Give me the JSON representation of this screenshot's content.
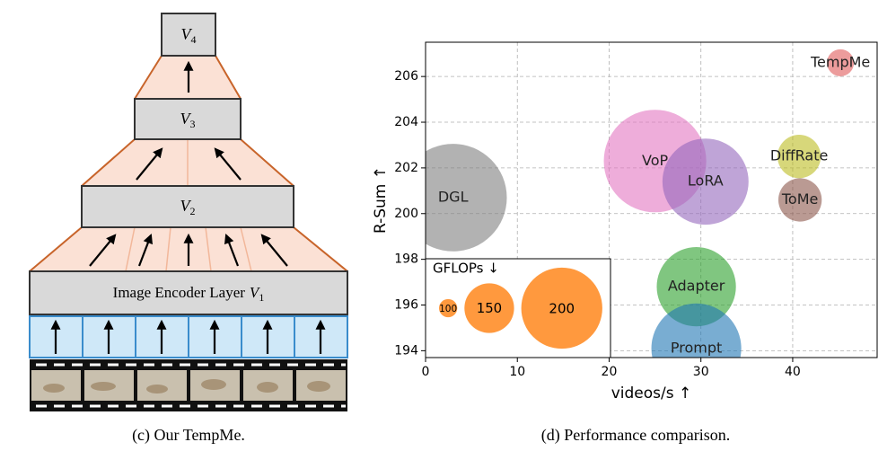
{
  "diagram": {
    "blocks": [
      {
        "name": "V",
        "sub": "4"
      },
      {
        "name": "V",
        "sub": "3"
      },
      {
        "name": "V",
        "sub": "2"
      }
    ],
    "encoder": {
      "prefix": "Image Encoder Layer",
      "name": "V",
      "sub": "1"
    },
    "caption": "(c) Our TempMe."
  },
  "chart_data": {
    "type": "scatter",
    "caption": "(d) Performance comparison.",
    "xlabel": "videos/s ↑",
    "ylabel": "R-Sum ↑",
    "xlim": [
      0,
      49.2
    ],
    "xticks": [
      0,
      10,
      20,
      30,
      40
    ],
    "ylim": [
      193.7,
      207.5
    ],
    "yticks": [
      194,
      196,
      198,
      200,
      202,
      204,
      206
    ],
    "grid": true,
    "series": [
      {
        "name": "TempMe",
        "color": "#e05a5a",
        "x": [
          45.2
        ],
        "values": [
          206.6
        ],
        "sizes": [
          114
        ]
      },
      {
        "name": "VoP",
        "color": "#e377c2",
        "x": [
          25
        ],
        "values": [
          202.3
        ],
        "sizes": [
          234
        ]
      },
      {
        "name": "LoRA",
        "color": "#9467bd",
        "x": [
          30.5
        ],
        "values": [
          201.4
        ],
        "sizes": [
          208
        ]
      },
      {
        "name": "DiffRate",
        "color": "#bcbd22",
        "x": [
          40.7
        ],
        "values": [
          202.5
        ],
        "sizes": [
          140
        ]
      },
      {
        "name": "ToMe",
        "color": "#8c564b",
        "x": [
          40.8
        ],
        "values": [
          200.6
        ],
        "sizes": [
          140
        ]
      },
      {
        "name": "DGL",
        "color": "#7f7f7f",
        "x": [
          3
        ],
        "values": [
          200.7
        ],
        "sizes": [
          242
        ]
      },
      {
        "name": "Adapter",
        "color": "#2ca02c",
        "x": [
          29.5
        ],
        "values": [
          196.8
        ],
        "sizes": [
          197
        ]
      },
      {
        "name": "Prompt",
        "color": "#1f77b4",
        "x": [
          29.5
        ],
        "values": [
          194.1
        ],
        "sizes": [
          214
        ]
      }
    ],
    "size_legend": {
      "title": "GFLOPs ↓",
      "sizes": [
        100,
        150,
        200
      ],
      "color": "#ff7f0e"
    }
  }
}
